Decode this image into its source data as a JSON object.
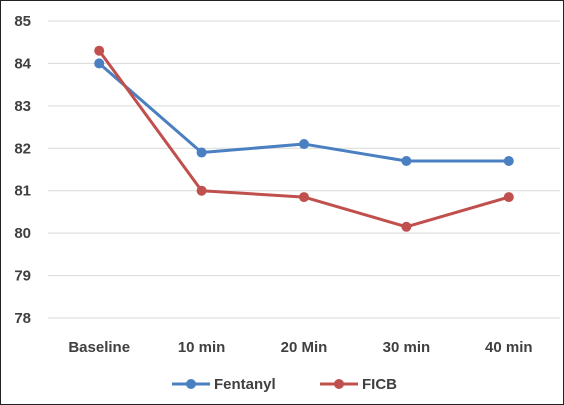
{
  "chart_data": {
    "type": "line",
    "title": "",
    "xlabel": "",
    "ylabel": "",
    "categories": [
      "Baseline",
      "10 min",
      "20 Min",
      "30 min",
      "40 min"
    ],
    "ylim": [
      78,
      85
    ],
    "yticks": [
      "78",
      "79",
      "80",
      "81",
      "82",
      "83",
      "84",
      "85"
    ],
    "grid": true,
    "legend_position": "bottom",
    "series": [
      {
        "name": "Fentanyl",
        "color": "#4a7fc1",
        "values": [
          84.0,
          81.9,
          82.1,
          81.7,
          81.7
        ]
      },
      {
        "name": "FICB",
        "color": "#c0504d",
        "values": [
          84.3,
          81.0,
          80.85,
          80.15,
          80.85
        ]
      }
    ]
  }
}
